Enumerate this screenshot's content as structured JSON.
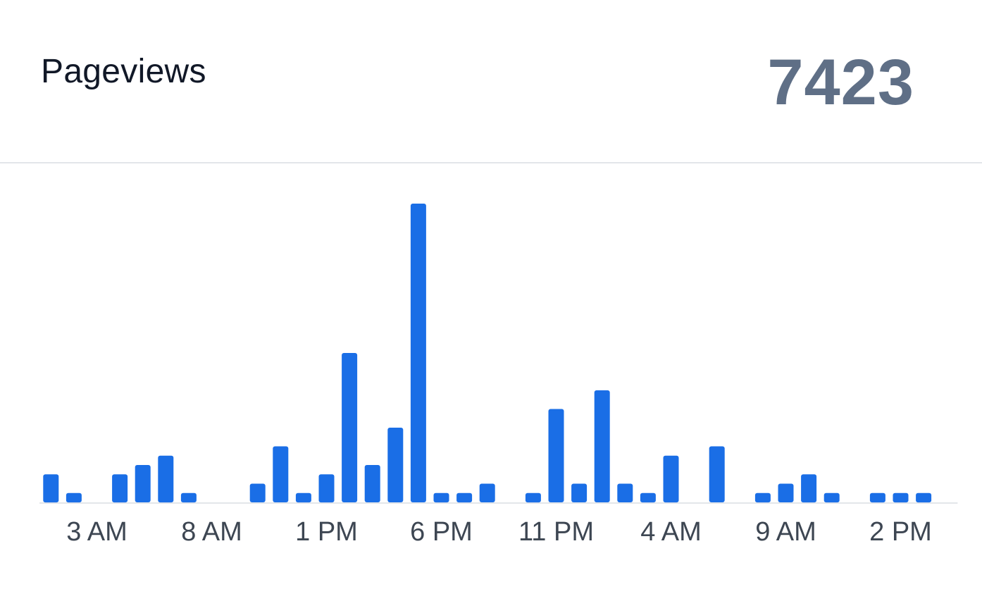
{
  "header": {
    "title": "Pageviews",
    "total": "7423"
  },
  "colors": {
    "bar": "#1a6ee6",
    "baseline": "#e3e6ea",
    "tick_label": "#3d4652",
    "total": "#5f6f86"
  },
  "chart_data": {
    "type": "bar",
    "title": "Pageviews",
    "xlabel": "",
    "ylabel": "",
    "ylim": [
      0,
      32
    ],
    "grid": false,
    "x_tick_labels": [
      "3 AM",
      "8 AM",
      "1 PM",
      "6 PM",
      "11 PM",
      "4 AM",
      "9 AM",
      "2 PM"
    ],
    "x_tick_slots": [
      2,
      7,
      12,
      17,
      22,
      27,
      32,
      37
    ],
    "slot_count": 39,
    "bars": [
      {
        "slot": 0,
        "value": 3
      },
      {
        "slot": 1,
        "value": 1
      },
      {
        "slot": 3,
        "value": 3
      },
      {
        "slot": 4,
        "value": 4
      },
      {
        "slot": 5,
        "value": 5
      },
      {
        "slot": 6,
        "value": 1
      },
      {
        "slot": 9,
        "value": 2
      },
      {
        "slot": 10,
        "value": 6
      },
      {
        "slot": 11,
        "value": 1
      },
      {
        "slot": 12,
        "value": 3
      },
      {
        "slot": 13,
        "value": 16
      },
      {
        "slot": 14,
        "value": 4
      },
      {
        "slot": 15,
        "value": 8
      },
      {
        "slot": 16,
        "value": 32
      },
      {
        "slot": 17,
        "value": 1
      },
      {
        "slot": 18,
        "value": 1
      },
      {
        "slot": 19,
        "value": 2
      },
      {
        "slot": 21,
        "value": 1
      },
      {
        "slot": 22,
        "value": 10
      },
      {
        "slot": 23,
        "value": 2
      },
      {
        "slot": 24,
        "value": 12
      },
      {
        "slot": 25,
        "value": 2
      },
      {
        "slot": 26,
        "value": 1
      },
      {
        "slot": 27,
        "value": 5
      },
      {
        "slot": 29,
        "value": 6
      },
      {
        "slot": 31,
        "value": 1
      },
      {
        "slot": 32,
        "value": 2
      },
      {
        "slot": 33,
        "value": 3
      },
      {
        "slot": 34,
        "value": 1
      },
      {
        "slot": 36,
        "value": 1
      },
      {
        "slot": 37,
        "value": 1
      },
      {
        "slot": 38,
        "value": 1
      }
    ]
  }
}
